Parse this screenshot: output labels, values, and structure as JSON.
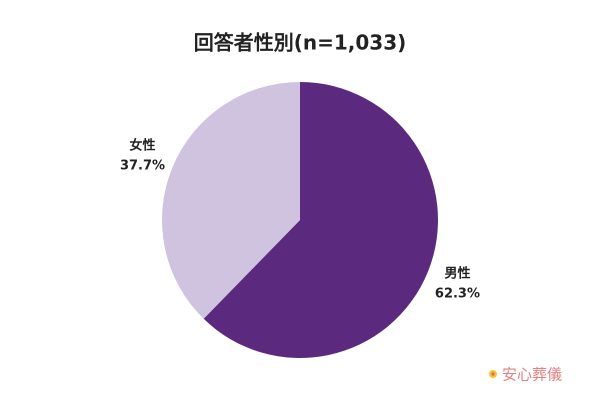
{
  "chart_data": {
    "type": "pie",
    "title": "回答者性別(n=1,033)",
    "categories": [
      "男性",
      "女性"
    ],
    "values": [
      62.3,
      37.7
    ],
    "value_labels": [
      "62.3%",
      "37.7%"
    ],
    "colors": [
      "#5b2a7e",
      "#cfc3e0"
    ],
    "watermark": "安心葬儀"
  }
}
